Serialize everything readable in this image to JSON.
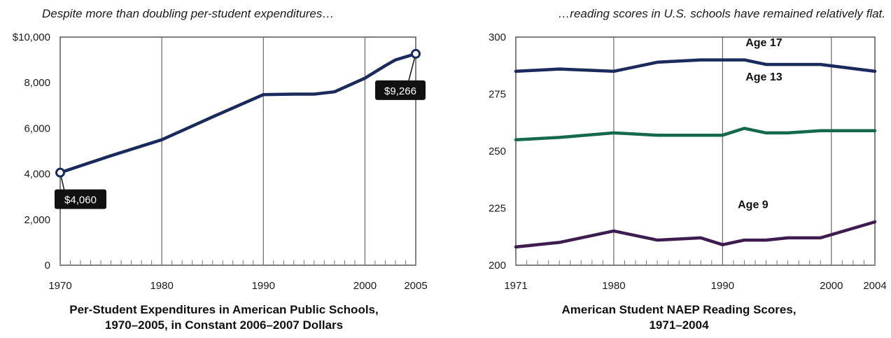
{
  "chart_data": [
    {
      "type": "line",
      "subtitle": "Despite more than doubling per-student expenditures…",
      "title_lines": [
        "Per-Student Expenditures in American Public Schools,",
        "1970–2005, in Constant 2006–2007 Dollars"
      ],
      "xlim": [
        1970,
        2005
      ],
      "ylim": [
        0,
        10000
      ],
      "x_ticks": [
        1970,
        1980,
        1990,
        2000,
        2005
      ],
      "x_tick_labels": [
        "1970",
        "1980",
        "1990",
        "2000",
        "2005"
      ],
      "y_ticks": [
        0,
        2000,
        4000,
        6000,
        8000,
        10000
      ],
      "y_tick_labels": [
        "0",
        "2,000",
        "4,000",
        "6,000",
        "8,000",
        "$10,000"
      ],
      "gridlines_x": [
        1980,
        1990,
        2000
      ],
      "series": [
        {
          "color": "#1b2a5c",
          "points": [
            [
              1970,
              4060
            ],
            [
              1975,
              4800
            ],
            [
              1980,
              5500
            ],
            [
              1985,
              6500
            ],
            [
              1990,
              7480
            ],
            [
              1993,
              7500
            ],
            [
              1995,
              7500
            ],
            [
              1997,
              7600
            ],
            [
              2000,
              8200
            ],
            [
              2002,
              8750
            ],
            [
              2003,
              9000
            ],
            [
              2005,
              9266
            ]
          ]
        }
      ],
      "annotations": [
        {
          "x": 1970,
          "y": 4060,
          "label": "$4,060"
        },
        {
          "x": 2005,
          "y": 9266,
          "label": "$9,266"
        }
      ]
    },
    {
      "type": "line",
      "subtitle": "…reading scores in U.S. schools have remained relatively flat.",
      "title_lines": [
        "American Student NAEP Reading Scores,",
        "1971–2004"
      ],
      "xlim": [
        1971,
        2004
      ],
      "ylim": [
        200,
        300
      ],
      "x_ticks": [
        1971,
        1980,
        1990,
        2000,
        2004
      ],
      "x_tick_labels": [
        "1971",
        "1980",
        "1990",
        "2000",
        "2004"
      ],
      "y_ticks": [
        200,
        225,
        250,
        275,
        300
      ],
      "y_tick_labels": [
        "200",
        "225",
        "250",
        "275",
        "300"
      ],
      "gridlines_x": [
        1980,
        1990,
        2000
      ],
      "series": [
        {
          "name": "Age 17",
          "color": "#1b2a5c",
          "points": [
            [
              1971,
              285
            ],
            [
              1975,
              286
            ],
            [
              1980,
              285
            ],
            [
              1984,
              289
            ],
            [
              1988,
              290
            ],
            [
              1990,
              290
            ],
            [
              1992,
              290
            ],
            [
              1994,
              288
            ],
            [
              1996,
              288
            ],
            [
              1999,
              288
            ],
            [
              2004,
              285
            ]
          ]
        },
        {
          "name": "Age 13",
          "color": "#13694a",
          "points": [
            [
              1971,
              255
            ],
            [
              1975,
              256
            ],
            [
              1980,
              258
            ],
            [
              1984,
              257
            ],
            [
              1988,
              257
            ],
            [
              1990,
              257
            ],
            [
              1992,
              260
            ],
            [
              1994,
              258
            ],
            [
              1996,
              258
            ],
            [
              1999,
              259
            ],
            [
              2004,
              259
            ]
          ]
        },
        {
          "name": "Age 9",
          "color": "#3e1c4f",
          "points": [
            [
              1971,
              208
            ],
            [
              1975,
              210
            ],
            [
              1980,
              215
            ],
            [
              1984,
              211
            ],
            [
              1988,
              212
            ],
            [
              1990,
              209
            ],
            [
              1992,
              211
            ],
            [
              1994,
              211
            ],
            [
              1996,
              212
            ],
            [
              1999,
              212
            ],
            [
              2004,
              219
            ]
          ]
        }
      ]
    }
  ]
}
